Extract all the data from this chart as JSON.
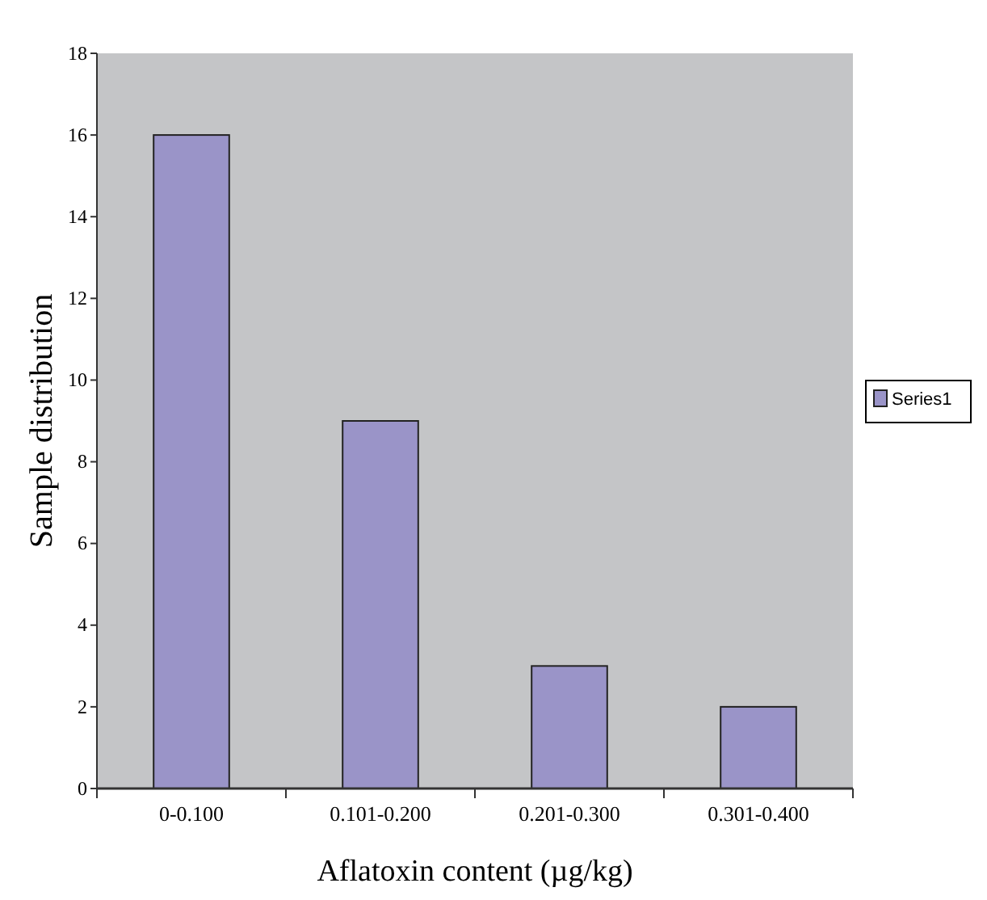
{
  "chart_data": {
    "type": "bar",
    "xlabel": "Aflatoxin content (µg/kg)",
    "ylabel": "Sample distribution",
    "categories": [
      "0-0.100",
      "0.101-0.200",
      "0.201-0.300",
      "0.301-0.400"
    ],
    "series": [
      {
        "name": "Series1",
        "color": "#9a94c8",
        "values": [
          16,
          9,
          3,
          2
        ]
      }
    ],
    "ylim": [
      0,
      18
    ],
    "yticks": [
      0,
      2,
      4,
      6,
      8,
      10,
      12,
      14,
      16,
      18
    ],
    "grid": false,
    "legend": "right"
  }
}
